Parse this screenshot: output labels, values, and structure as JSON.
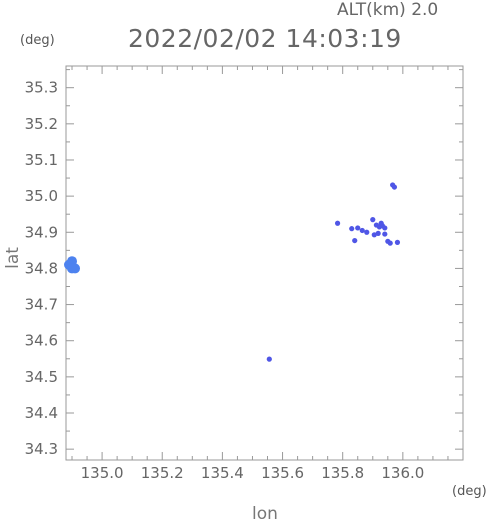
{
  "chart_data": {
    "type": "scatter",
    "title": "2022/02/02 14:03:19",
    "altitude_label": "ALT(km)  2.0",
    "xlabel": "lon",
    "ylabel": "lat",
    "x_unit": "(deg)",
    "y_unit": "(deg)",
    "xlim": [
      134.88,
      136.2
    ],
    "ylim": [
      34.27,
      35.36
    ],
    "x_ticks": [
      "135.0",
      "135.2",
      "135.4",
      "135.6",
      "135.8",
      "136.0"
    ],
    "y_ticks": [
      "34.3",
      "34.4",
      "34.5",
      "34.6",
      "34.7",
      "34.8",
      "34.9",
      "35.0",
      "35.1",
      "35.2",
      "35.3"
    ],
    "grid": false,
    "colors": {
      "primary": "#4f56e6",
      "secondary": "#4d82ef"
    },
    "points": [
      {
        "x": 134.9,
        "y": 34.82,
        "color": "#4d82ef"
      },
      {
        "x": 134.89,
        "y": 34.81,
        "color": "#4d82ef"
      },
      {
        "x": 134.91,
        "y": 34.8,
        "color": "#4d82ef"
      },
      {
        "x": 134.9,
        "y": 34.8,
        "color": "#4d82ef"
      },
      {
        "x": 135.966,
        "y": 35.031,
        "color": "#4f56e6"
      },
      {
        "x": 135.972,
        "y": 35.025,
        "color": "#4f56e6"
      },
      {
        "x": 135.783,
        "y": 34.925,
        "color": "#4f56e6"
      },
      {
        "x": 135.83,
        "y": 34.91,
        "color": "#4f56e6"
      },
      {
        "x": 135.85,
        "y": 34.912,
        "color": "#4f56e6"
      },
      {
        "x": 135.865,
        "y": 34.905,
        "color": "#4f56e6"
      },
      {
        "x": 135.88,
        "y": 34.9,
        "color": "#4f56e6"
      },
      {
        "x": 135.9,
        "y": 34.935,
        "color": "#4f56e6"
      },
      {
        "x": 135.912,
        "y": 34.92,
        "color": "#4f56e6"
      },
      {
        "x": 135.922,
        "y": 34.915,
        "color": "#4f56e6"
      },
      {
        "x": 135.932,
        "y": 34.918,
        "color": "#4f56e6"
      },
      {
        "x": 135.94,
        "y": 34.912,
        "color": "#4f56e6"
      },
      {
        "x": 135.928,
        "y": 34.925,
        "color": "#4f56e6"
      },
      {
        "x": 135.905,
        "y": 34.893,
        "color": "#4f56e6"
      },
      {
        "x": 135.918,
        "y": 34.897,
        "color": "#4f56e6"
      },
      {
        "x": 135.94,
        "y": 34.895,
        "color": "#4f56e6"
      },
      {
        "x": 135.84,
        "y": 34.877,
        "color": "#4f56e6"
      },
      {
        "x": 135.95,
        "y": 34.875,
        "color": "#4f56e6"
      },
      {
        "x": 135.958,
        "y": 34.87,
        "color": "#4f56e6"
      },
      {
        "x": 135.982,
        "y": 34.872,
        "color": "#4f56e6"
      },
      {
        "x": 135.556,
        "y": 34.549,
        "color": "#4f56e6"
      }
    ]
  }
}
